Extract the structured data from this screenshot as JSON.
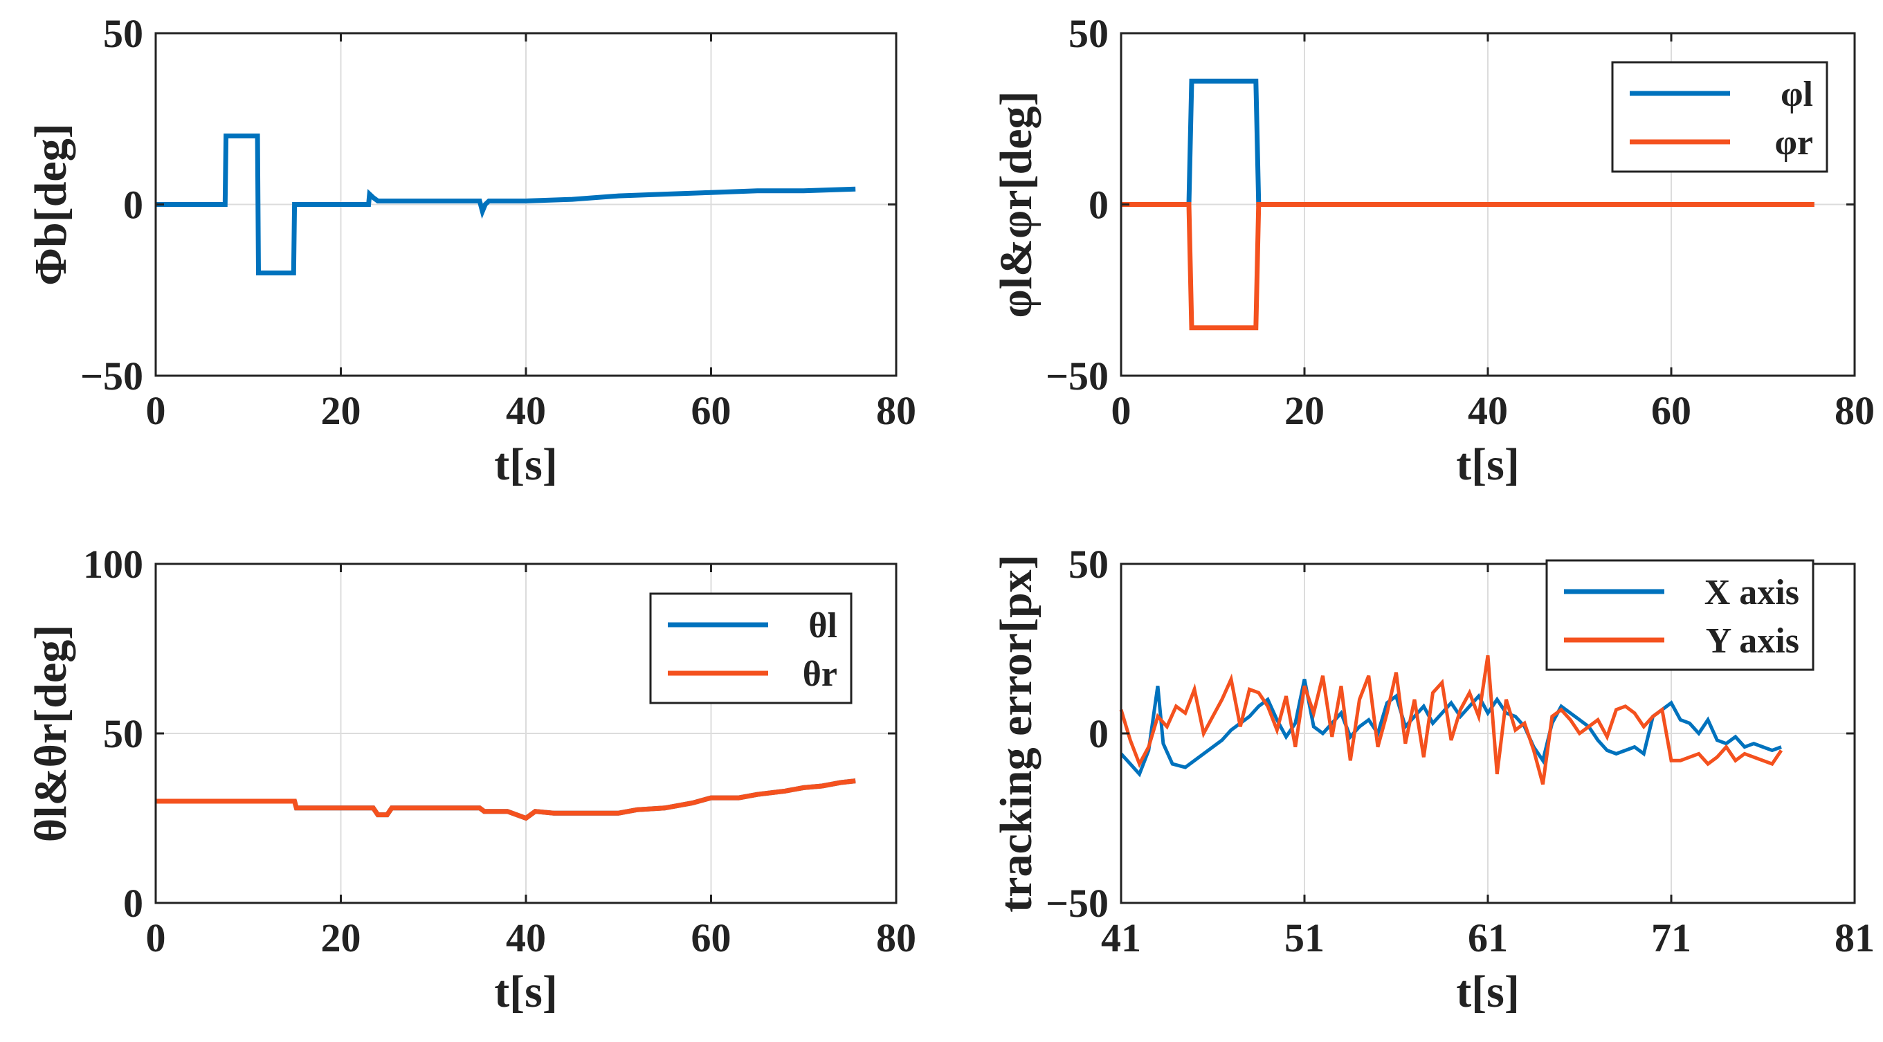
{
  "colors": {
    "series_blue": "#0072BD",
    "series_orange": "#F4511E"
  },
  "chart_data": [
    {
      "type": "line",
      "xlabel": "t[s]",
      "ylabel": "Φb[deg]",
      "xlim": [
        0,
        80
      ],
      "ylim": [
        -50,
        50
      ],
      "xticks": [
        0,
        20,
        40,
        60,
        80
      ],
      "xtick_labels": [
        "0",
        "20",
        "40",
        "60",
        "80"
      ],
      "yticks": [
        -50,
        0,
        50
      ],
      "ytick_labels": [
        "−50",
        "0",
        "50"
      ],
      "grid": true,
      "legend_position": "none",
      "series": [
        {
          "name": "Φb",
          "color": "#0072BD",
          "x": [
            0,
            7.5,
            7.6,
            11,
            11.1,
            14.9,
            15,
            23,
            23.1,
            23.5,
            24,
            25,
            35,
            35.3,
            35.6,
            36,
            40,
            45,
            50,
            55,
            60,
            65,
            70,
            75.6
          ],
          "y": [
            0,
            0,
            20,
            20,
            -20,
            -20,
            0,
            0,
            3,
            2,
            1,
            1,
            1,
            -2,
            0,
            1,
            1,
            1.5,
            2.5,
            3,
            3.5,
            4,
            4,
            4.5
          ]
        }
      ]
    },
    {
      "type": "line",
      "xlabel": "t[s]",
      "ylabel": "φl&φr[deg]",
      "xlim": [
        0,
        80
      ],
      "ylim": [
        -50,
        50
      ],
      "xticks": [
        0,
        20,
        40,
        60,
        80
      ],
      "xtick_labels": [
        "0",
        "20",
        "40",
        "60",
        "80"
      ],
      "yticks": [
        -50,
        0,
        50
      ],
      "ytick_labels": [
        "−50",
        "0",
        "50"
      ],
      "grid": true,
      "legend_position": "top-right",
      "series": [
        {
          "name": "φl",
          "color": "#0072BD",
          "x": [
            0,
            7.4,
            7.7,
            14.7,
            15,
            75.6
          ],
          "y": [
            0,
            0,
            36,
            36,
            0,
            0
          ]
        },
        {
          "name": "φr",
          "color": "#F4511E",
          "x": [
            0,
            7.4,
            7.7,
            14.7,
            15,
            75.6
          ],
          "y": [
            0,
            0,
            -36,
            -36,
            0,
            0
          ]
        }
      ]
    },
    {
      "type": "line",
      "xlabel": "t[s]",
      "ylabel": "θl&θr[deg]",
      "xlim": [
        0,
        80
      ],
      "ylim": [
        0,
        100
      ],
      "xticks": [
        0,
        20,
        40,
        60,
        80
      ],
      "xtick_labels": [
        "0",
        "20",
        "40",
        "60",
        "80"
      ],
      "yticks": [
        0,
        50,
        100
      ],
      "ytick_labels": [
        "0",
        "50",
        "100"
      ],
      "grid": true,
      "legend_position": "top-right",
      "series": [
        {
          "name": "θl",
          "color": "#0072BD",
          "x": [
            0,
            15,
            15.2,
            23.5,
            24,
            25,
            25.5,
            35,
            35.5,
            38,
            40,
            41,
            43,
            45,
            50,
            52,
            55,
            58,
            60,
            63,
            65,
            68,
            70,
            72,
            74,
            75.6
          ],
          "y": [
            30,
            30,
            28,
            28,
            26,
            26,
            28,
            28,
            27,
            27,
            25,
            27,
            26.5,
            26.5,
            26.5,
            27.5,
            28,
            29.5,
            31,
            31,
            32,
            33,
            34,
            34.5,
            35.5,
            36
          ]
        },
        {
          "name": "θr",
          "color": "#F4511E",
          "x": [
            0,
            15,
            15.2,
            23.5,
            24,
            25,
            25.5,
            35,
            35.5,
            38,
            40,
            41,
            43,
            45,
            50,
            52,
            55,
            58,
            60,
            63,
            65,
            68,
            70,
            72,
            74,
            75.6
          ],
          "y": [
            30,
            30,
            28,
            28,
            26,
            26,
            28,
            28,
            27,
            27,
            25,
            27,
            26.5,
            26.5,
            26.5,
            27.5,
            28,
            29.5,
            31,
            31,
            32,
            33,
            34,
            34.5,
            35.5,
            36
          ]
        }
      ]
    },
    {
      "type": "line",
      "xlabel": "t[s]",
      "ylabel": "tracking error[px]",
      "xlim": [
        41,
        81
      ],
      "ylim": [
        -50,
        50
      ],
      "xticks": [
        41,
        51,
        61,
        71,
        81
      ],
      "xtick_labels": [
        "41",
        "51",
        "61",
        "71",
        "81"
      ],
      "yticks": [
        -50,
        0,
        50
      ],
      "ytick_labels": [
        "−50",
        "0",
        "50"
      ],
      "grid": true,
      "legend_position": "top-right",
      "series": [
        {
          "name": "X axis",
          "color": "#0072BD",
          "x": [
            41,
            41.5,
            42,
            42.5,
            43,
            43.3,
            43.8,
            44.5,
            45,
            45.5,
            46,
            46.5,
            47,
            47.5,
            48,
            48.5,
            49,
            49.5,
            50,
            50.5,
            51,
            51.5,
            52,
            52.5,
            53,
            53.5,
            54,
            54.5,
            55,
            55.5,
            56,
            56.5,
            57,
            57.5,
            58,
            58.5,
            59,
            59.5,
            60,
            60.5,
            61,
            61.5,
            62,
            62.5,
            63,
            63.5,
            64,
            64.5,
            65,
            65.5,
            66,
            66.5,
            67,
            67.5,
            68,
            68.5,
            69,
            69.5,
            70,
            70.5,
            71,
            71.5,
            72,
            72.5,
            73,
            73.5,
            74,
            74.5,
            75,
            75.5,
            76,
            76.5,
            77
          ],
          "y": [
            -6,
            -9,
            -12,
            -5,
            14,
            -3,
            -9,
            -10,
            -8,
            -6,
            -4,
            -2,
            1,
            3,
            5,
            8,
            10,
            4,
            -1,
            3,
            16,
            2,
            0,
            3,
            6,
            -1,
            2,
            4,
            0,
            9,
            11,
            2,
            5,
            8,
            3,
            6,
            9,
            5,
            8,
            11,
            6,
            10,
            6,
            5,
            2,
            -4,
            -8,
            3,
            8,
            6,
            4,
            2,
            -2,
            -5,
            -6,
            -5,
            -4,
            -6,
            5,
            7,
            9,
            4,
            3,
            0,
            4,
            -2,
            -3,
            -1,
            -4,
            -3,
            -4,
            -5,
            -4
          ]
        },
        {
          "name": "Y axis",
          "color": "#F4511E",
          "x": [
            41,
            41.5,
            42,
            42.5,
            43,
            43.5,
            44,
            44.5,
            45,
            45.5,
            46,
            46.5,
            47,
            47.5,
            48,
            48.5,
            49,
            49.5,
            50,
            50.5,
            51,
            51.5,
            52,
            52.5,
            53,
            53.5,
            54,
            54.5,
            55,
            55.5,
            56,
            56.5,
            57,
            57.5,
            58,
            58.5,
            59,
            59.5,
            60,
            60.5,
            61,
            61.5,
            62,
            62.5,
            63,
            63.5,
            64,
            64.5,
            65,
            65.5,
            66,
            66.5,
            67,
            67.5,
            68,
            68.5,
            69,
            69.5,
            70,
            70.5,
            71,
            71.5,
            72,
            72.5,
            73,
            73.5,
            74,
            74.5,
            75,
            75.5,
            76,
            76.5,
            77
          ],
          "y": [
            7,
            -2,
            -9,
            -4,
            5,
            2,
            8,
            6,
            13,
            0,
            5,
            10,
            16,
            2,
            13,
            12,
            8,
            1,
            11,
            -4,
            14,
            6,
            17,
            -1,
            14,
            -8,
            10,
            17,
            -4,
            6,
            18,
            -3,
            10,
            -7,
            12,
            15,
            -2,
            7,
            12,
            5,
            23,
            -12,
            10,
            1,
            3,
            -5,
            -15,
            5,
            7,
            4,
            0,
            2,
            4,
            -1,
            7,
            8,
            6,
            2,
            5,
            7,
            -8,
            -8,
            -7,
            -6,
            -9,
            -7,
            -4,
            -8,
            -6,
            -7,
            -8,
            -9,
            -5
          ]
        }
      ]
    }
  ]
}
